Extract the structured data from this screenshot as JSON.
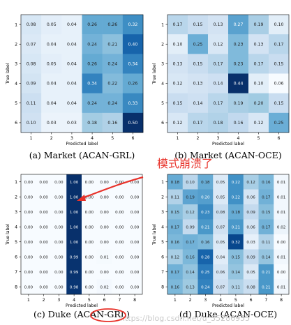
{
  "annotation": {
    "text": "模式崩溃了",
    "color": "#e8322a"
  },
  "watermark": "https://blog.csdn.net/u_35286955",
  "chart_data": [
    {
      "type": "heatmap",
      "caption": "(a) Market (ACAN-GRL)",
      "xlabel": "Predicted label",
      "ylabel": "True label",
      "x_ticks": [
        "1",
        "2",
        "3",
        "4",
        "5",
        "6"
      ],
      "y_ticks": [
        "1",
        "2",
        "3",
        "4",
        "5",
        "6"
      ],
      "colorscale": "Blues",
      "range": [
        0,
        0.5
      ],
      "values": [
        [
          0.08,
          0.05,
          0.04,
          0.26,
          0.26,
          0.32
        ],
        [
          0.07,
          0.04,
          0.04,
          0.24,
          0.21,
          0.4
        ],
        [
          0.08,
          0.05,
          0.04,
          0.26,
          0.24,
          0.34
        ],
        [
          0.09,
          0.04,
          0.04,
          0.34,
          0.22,
          0.26
        ],
        [
          0.11,
          0.04,
          0.04,
          0.24,
          0.24,
          0.33
        ],
        [
          0.1,
          0.03,
          0.03,
          0.18,
          0.16,
          0.5
        ]
      ]
    },
    {
      "type": "heatmap",
      "caption": "(b) Market (ACAN-OCE)",
      "xlabel": "Predicted label",
      "ylabel": "True label",
      "x_ticks": [
        "1",
        "2",
        "3",
        "4",
        "5",
        "6"
      ],
      "y_ticks": [
        "1",
        "2",
        "3",
        "4",
        "5",
        "6"
      ],
      "colorscale": "Blues",
      "range": [
        0.06,
        0.44
      ],
      "values": [
        [
          0.17,
          0.15,
          0.13,
          0.27,
          0.19,
          0.1
        ],
        [
          0.1,
          0.25,
          0.12,
          0.23,
          0.13,
          0.17
        ],
        [
          0.13,
          0.15,
          0.17,
          0.23,
          0.17,
          0.15
        ],
        [
          0.12,
          0.13,
          0.14,
          0.44,
          0.1,
          0.06
        ],
        [
          0.15,
          0.14,
          0.17,
          0.19,
          0.2,
          0.15
        ],
        [
          0.12,
          0.17,
          0.18,
          0.16,
          0.12,
          0.25
        ]
      ]
    },
    {
      "type": "heatmap",
      "caption": "(c) Duke (ACAN-GRL)",
      "xlabel": "Predicted label",
      "ylabel": "True label",
      "x_ticks": [
        "1",
        "2",
        "3",
        "4",
        "5",
        "6",
        "7",
        "8"
      ],
      "y_ticks": [
        "1",
        "2",
        "3",
        "4",
        "5",
        "6",
        "7",
        "8"
      ],
      "colorscale": "Blues",
      "range": [
        0,
        1.0
      ],
      "values": [
        [
          0.0,
          0.0,
          0.0,
          1.0,
          0.0,
          0.0,
          0.0,
          0.0
        ],
        [
          0.0,
          0.0,
          0.0,
          1.0,
          0.0,
          0.0,
          0.0,
          0.0
        ],
        [
          0.0,
          0.0,
          0.0,
          1.0,
          0.0,
          0.0,
          0.0,
          0.0
        ],
        [
          0.0,
          0.0,
          0.0,
          1.0,
          0.0,
          0.0,
          0.0,
          0.0
        ],
        [
          0.0,
          0.0,
          0.0,
          1.0,
          0.0,
          0.0,
          0.0,
          0.0
        ],
        [
          0.0,
          0.0,
          0.0,
          0.99,
          0.0,
          0.01,
          0.0,
          0.0
        ],
        [
          0.0,
          0.0,
          0.0,
          0.99,
          0.0,
          0.0,
          0.0,
          0.0
        ],
        [
          0.0,
          0.0,
          0.0,
          0.98,
          0.0,
          0.02,
          0.0,
          0.0
        ]
      ]
    },
    {
      "type": "heatmap",
      "caption": "(d) Duke (ACAN-OCE)",
      "xlabel": "Predicted label",
      "ylabel": "True label",
      "x_ticks": [
        "1",
        "2",
        "3",
        "4",
        "5",
        "6",
        "7",
        "8"
      ],
      "y_ticks": [
        "1",
        "2",
        "3",
        "4",
        "5",
        "6",
        "7",
        "8"
      ],
      "colorscale": "Blues",
      "range": [
        0,
        0.35
      ],
      "values": [
        [
          0.18,
          0.1,
          0.18,
          0.05,
          0.22,
          0.12,
          0.16,
          0.01
        ],
        [
          0.11,
          0.19,
          0.2,
          0.05,
          0.22,
          0.06,
          0.17,
          0.01
        ],
        [
          0.15,
          0.12,
          0.23,
          0.08,
          0.18,
          0.09,
          0.15,
          0.01
        ],
        [
          0.17,
          0.09,
          0.21,
          0.07,
          0.21,
          0.06,
          0.17,
          0.02
        ],
        [
          0.16,
          0.17,
          0.16,
          0.05,
          0.32,
          0.03,
          0.11,
          0.0
        ],
        [
          0.12,
          0.16,
          0.28,
          0.04,
          0.15,
          0.09,
          0.14,
          0.01
        ],
        [
          0.17,
          0.14,
          0.25,
          0.06,
          0.14,
          0.05,
          0.21,
          0.0
        ],
        [
          0.16,
          0.13,
          0.24,
          0.07,
          0.11,
          0.08,
          0.21,
          0.01
        ]
      ]
    }
  ]
}
